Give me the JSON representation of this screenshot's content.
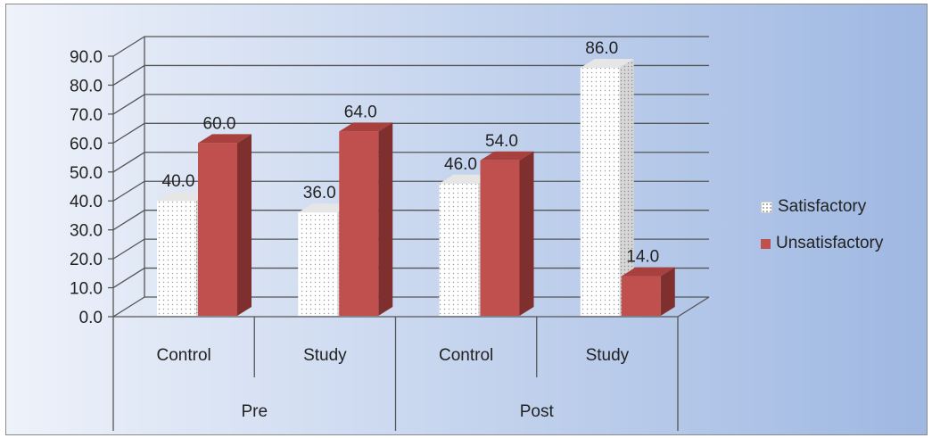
{
  "chart_data": {
    "type": "bar",
    "title": "",
    "xlabel": "",
    "ylabel": "",
    "ylim": [
      0,
      90
    ],
    "yticks": [
      "0.0",
      "10.0",
      "20.0",
      "30.0",
      "40.0",
      "50.0",
      "60.0",
      "70.0",
      "80.0",
      "90.0"
    ],
    "groups": [
      {
        "label": "Pre",
        "categories": [
          "Control",
          "Study"
        ]
      },
      {
        "label": "Post",
        "categories": [
          "Control",
          "Study"
        ]
      }
    ],
    "categories": [
      "Control",
      "Study",
      "Control",
      "Study"
    ],
    "series": [
      {
        "name": "Satisfactory",
        "values": [
          40.0,
          36.0,
          46.0,
          86.0
        ],
        "labels": [
          "40.0",
          "36.0",
          "46.0",
          "86.0"
        ],
        "color": "#ffffff",
        "pattern": "dotted"
      },
      {
        "name": "Unsatisfactory",
        "values": [
          60.0,
          64.0,
          54.0,
          14.0
        ],
        "labels": [
          "60.0",
          "64.0",
          "54.0",
          "14.0"
        ],
        "color": "#c0504d"
      }
    ],
    "legend_position": "right",
    "grid": true,
    "style": "3d-clustered-column"
  }
}
